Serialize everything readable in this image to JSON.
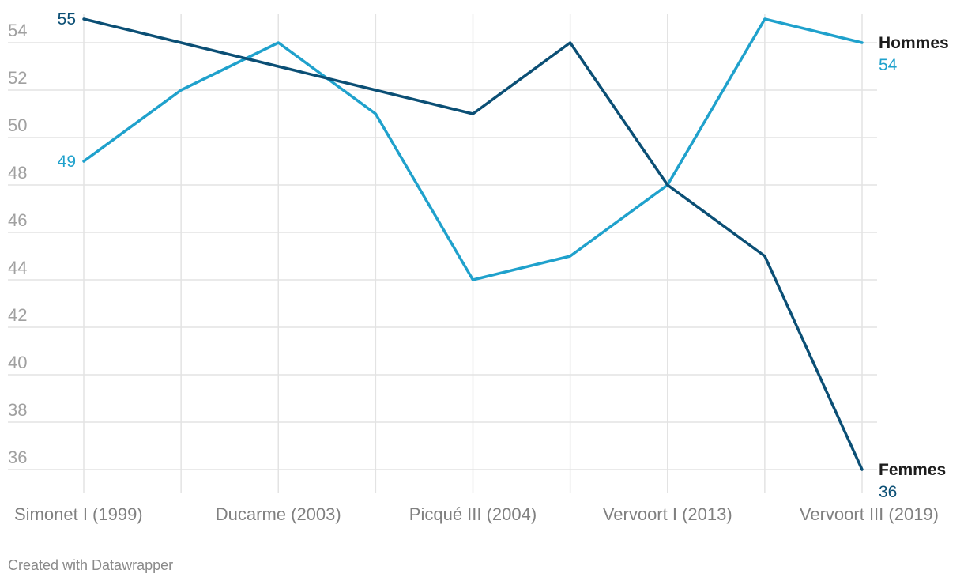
{
  "chart_data": {
    "type": "line",
    "title": "",
    "xlabel": "",
    "ylabel": "",
    "categories": [
      "Simonet I (1999)",
      "",
      "Ducarme (2003)",
      "",
      "Picqué III (2004)",
      "",
      "Vervoort I (2013)",
      "",
      "Vervoort III (2019)"
    ],
    "x_tick_labels": [
      "Simonet I (1999)",
      "Ducarme (2003)",
      "Picqué III (2004)",
      "Vervoort I (2013)",
      "Vervoort III (2019)"
    ],
    "y_ticks": [
      36,
      38,
      40,
      42,
      44,
      46,
      48,
      50,
      52,
      54
    ],
    "ylim": [
      35,
      55.5
    ],
    "grid": true,
    "series": [
      {
        "name": "Hommes",
        "color": "#1fa1cc",
        "values": [
          49,
          52,
          54,
          51,
          44,
          45,
          48,
          55,
          54
        ],
        "start_label": "49",
        "end_label": "54"
      },
      {
        "name": "Femmes",
        "color": "#0b4f75",
        "values": [
          55,
          54,
          53,
          52,
          51,
          54,
          48,
          45,
          36
        ],
        "start_label": "55",
        "end_label": "36"
      }
    ]
  },
  "footer": {
    "credit": "Created with Datawrapper"
  }
}
